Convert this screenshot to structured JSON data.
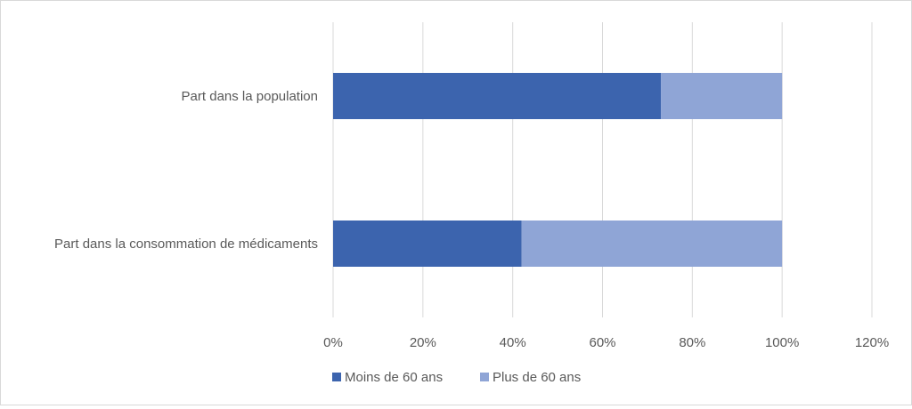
{
  "chart_data": {
    "type": "bar",
    "orientation": "horizontal",
    "stacked": true,
    "categories": [
      "Part dans la population",
      "Part dans la consommation de médicaments"
    ],
    "series": [
      {
        "name": "Moins de 60 ans",
        "values": [
          73,
          42
        ],
        "color": "#3c64ae"
      },
      {
        "name": "Plus de 60 ans",
        "values": [
          27,
          58
        ],
        "color": "#8fa5d6"
      }
    ],
    "xticks": [
      "0%",
      "20%",
      "40%",
      "60%",
      "80%",
      "100%",
      "120%"
    ],
    "xlim": [
      0,
      120
    ],
    "grid": true,
    "legend": "bottom"
  }
}
